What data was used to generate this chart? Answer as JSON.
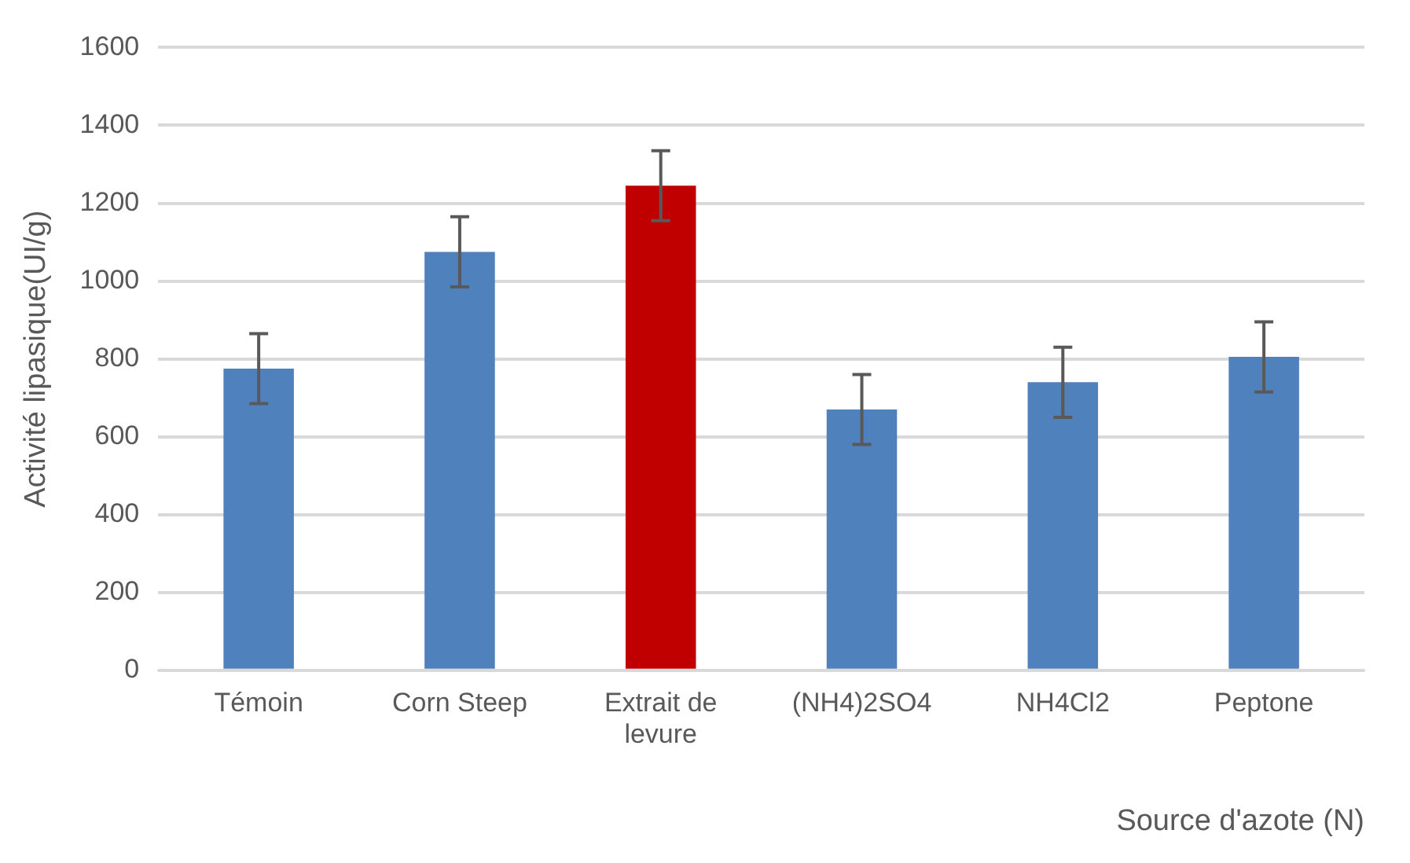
{
  "chart_data": {
    "type": "bar",
    "xlabel": "Source d'azote (N)",
    "ylabel": "Activité lipasique(UI/g)",
    "categories": [
      "Témoin",
      "Corn Steep",
      "Extrait de levure",
      "(NH4)2SO4",
      "NH4Cl2",
      "Peptone"
    ],
    "values": [
      775,
      1075,
      1245,
      670,
      740,
      805
    ],
    "colors": [
      "#4f81bd",
      "#4f81bd",
      "#c00000",
      "#4f81bd",
      "#4f81bd",
      "#4f81bd"
    ],
    "errors": [
      90,
      90,
      90,
      90,
      90,
      90
    ],
    "ylim": [
      0,
      1600
    ],
    "yticks": [
      0,
      200,
      400,
      600,
      800,
      1000,
      1200,
      1400,
      1600
    ],
    "grid": "y",
    "legend": false
  }
}
